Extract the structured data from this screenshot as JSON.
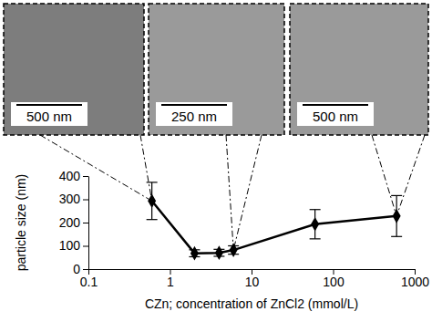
{
  "chart_data": {
    "type": "line",
    "x": [
      0.6,
      2,
      4,
      6,
      60,
      600
    ],
    "values": [
      293,
      68,
      70,
      82,
      193,
      228
    ],
    "errors": [
      80,
      15,
      15,
      18,
      63,
      88
    ],
    "xlabel": "CZn; concentration of ZnCl2 (mmol/L)",
    "ylabel": "particle size (nm)",
    "xlim": [
      0.1,
      1000
    ],
    "xticks": [
      0.1,
      1,
      10,
      100,
      1000
    ],
    "ylim": [
      0,
      400
    ],
    "yticks": [
      0,
      100,
      200,
      300,
      400
    ],
    "log": "x",
    "grid": false,
    "color": "#000000",
    "marker": "diamond",
    "line_style": "solid",
    "annotations": [
      "500 nm",
      "250 nm",
      "500 nm"
    ]
  }
}
